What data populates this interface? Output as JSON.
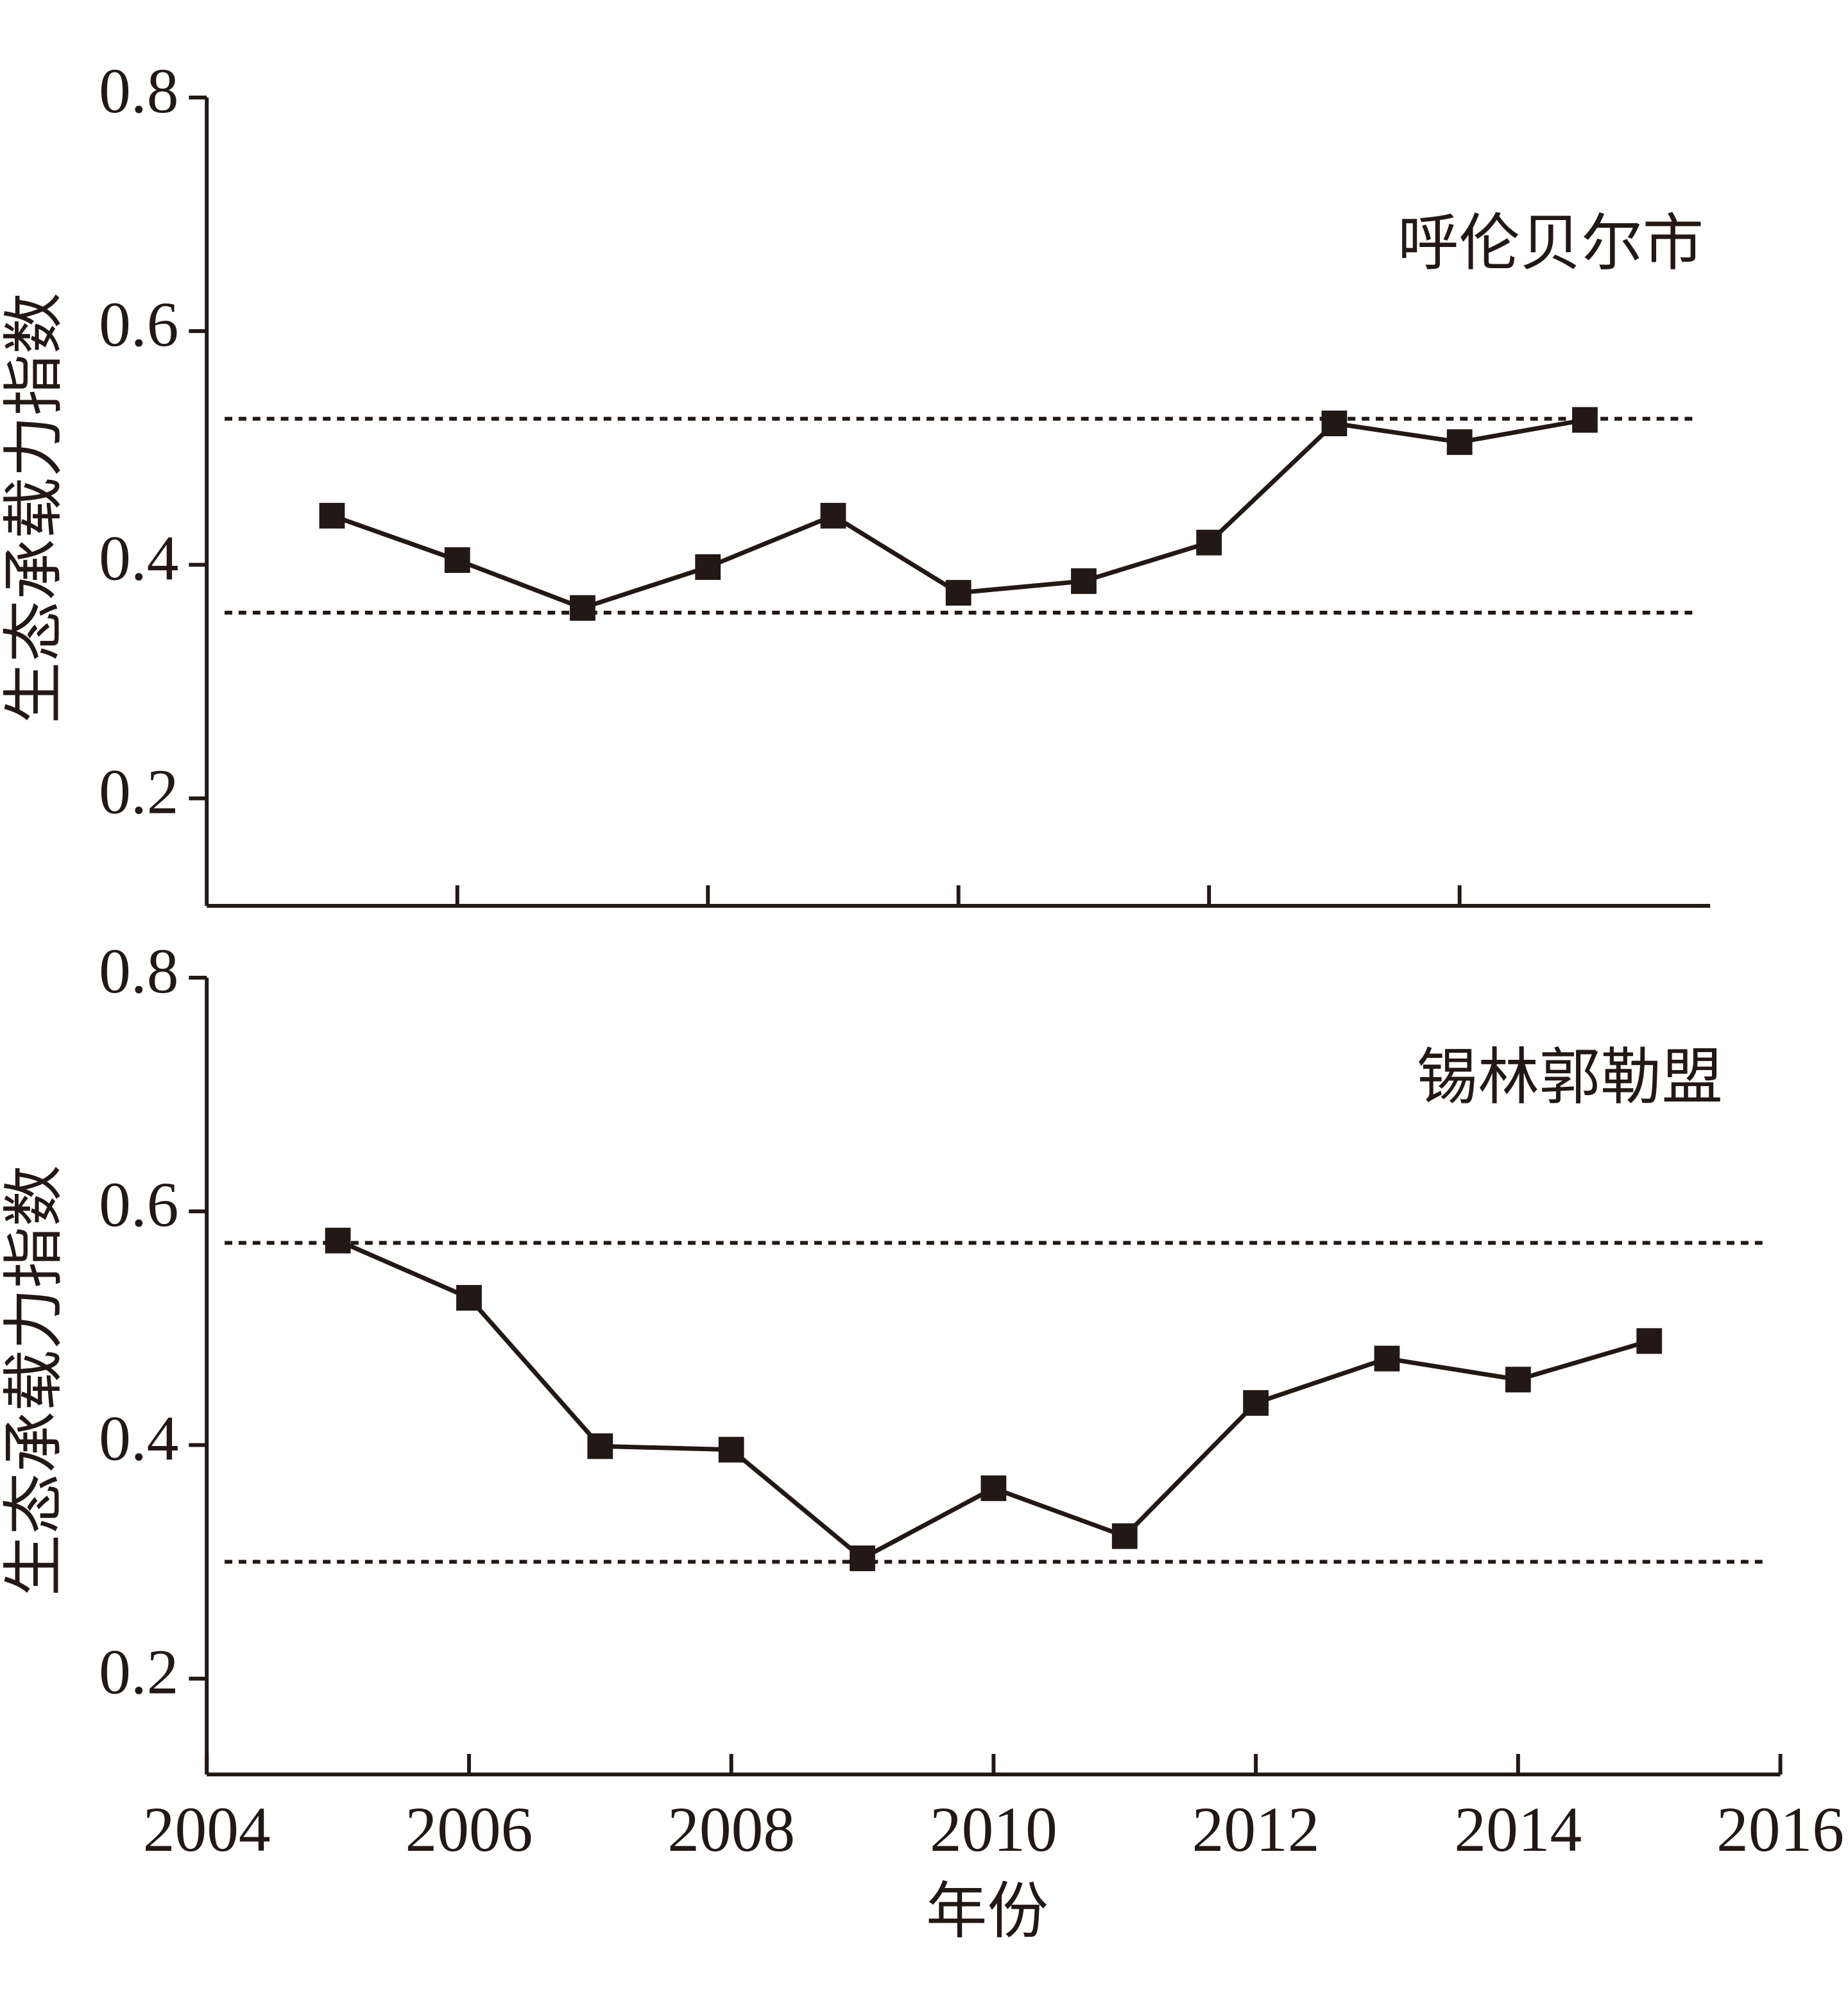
{
  "chart_data": [
    {
      "type": "line",
      "annotation": "呼伦贝尔市",
      "ylabel": "生态承载力指数",
      "x": [
        2005,
        2006,
        2007,
        2008,
        2009,
        2010,
        2011,
        2012,
        2013,
        2014,
        2015
      ],
      "series": [
        {
          "color": "#231815",
          "values": [
            0.442,
            0.404,
            0.363,
            0.398,
            0.442,
            0.376,
            0.386,
            0.419,
            0.521,
            0.505,
            0.524
          ]
        }
      ],
      "reference_lines": [
        0.525,
        0.359
      ],
      "xlim": [
        2004,
        2016
      ],
      "xticks": [
        2006,
        2008,
        2010,
        2012,
        2014
      ],
      "show_xtick_labels": false,
      "ylim": [
        0.108,
        0.8
      ],
      "yticks": [
        0.2,
        0.4,
        0.6,
        0.8
      ]
    },
    {
      "type": "line",
      "annotation": "锡林郭勒盟",
      "ylabel": "生态承载力指数",
      "xlabel": "年份",
      "x": [
        2005,
        2006,
        2007,
        2008,
        2009,
        2010,
        2011,
        2012,
        2013,
        2014,
        2015
      ],
      "series": [
        {
          "color": "#231815",
          "values": [
            0.575,
            0.526,
            0.399,
            0.396,
            0.303,
            0.363,
            0.322,
            0.436,
            0.474,
            0.456,
            0.489
          ]
        }
      ],
      "reference_lines": [
        0.573,
        0.3
      ],
      "xlim": [
        2004,
        2016
      ],
      "xticks": [
        2004,
        2006,
        2008,
        2010,
        2012,
        2014,
        2016
      ],
      "show_xtick_labels": true,
      "ylim": [
        0.118,
        0.8
      ],
      "yticks": [
        0.2,
        0.4,
        0.6,
        0.8
      ]
    }
  ]
}
